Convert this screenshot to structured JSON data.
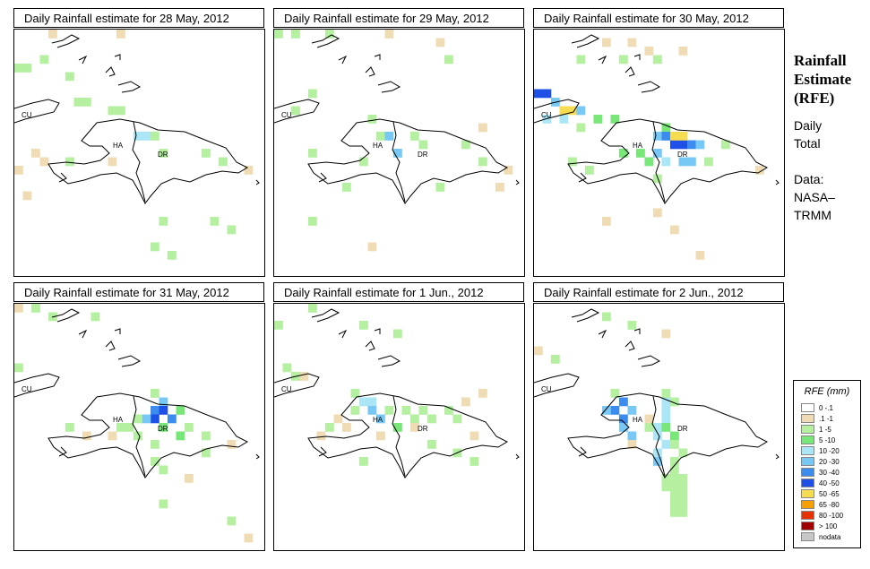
{
  "side": {
    "title_line1": "Rainfall",
    "title_line2": "Estimate",
    "title_line3": "(RFE)",
    "text1": "Daily",
    "text2": "Total",
    "text3": "Data:",
    "text4": "NASA–",
    "text5": "TRMM"
  },
  "legend": {
    "title": "RFE (mm)",
    "classes": [
      {
        "label": "0 -.1",
        "color": "#ffffff"
      },
      {
        "label": ".1 -1",
        "color": "#f0dcb4"
      },
      {
        "label": "1 -5",
        "color": "#b4f0a0"
      },
      {
        "label": "5 -10",
        "color": "#78e678"
      },
      {
        "label": "10 -20",
        "color": "#aae6f5"
      },
      {
        "label": "20 -30",
        "color": "#78c8f5"
      },
      {
        "label": "30 -40",
        "color": "#3c8cf0"
      },
      {
        "label": "40 -50",
        "color": "#1e50e6"
      },
      {
        "label": "50 -65",
        "color": "#f5dc50"
      },
      {
        "label": "65 -80",
        "color": "#f5a000"
      },
      {
        "label": "80 -100",
        "color": "#e63200"
      },
      {
        "label": "> 100",
        "color": "#a00000"
      },
      {
        "label": "nodata",
        "color": "#c8c8c8"
      }
    ]
  },
  "labels": {
    "cu": "CU",
    "ha": "HA",
    "dr": "DR"
  },
  "panels": [
    {
      "title": "Daily Rainfall estimate for  28 May, 2012"
    },
    {
      "title": "Daily Rainfall estimate for  29 May, 2012"
    },
    {
      "title": "Daily Rainfall estimate for  30 May, 2012"
    },
    {
      "title": "Daily Rainfall estimate for  31 May, 2012"
    },
    {
      "title": "Daily Rainfall estimate for  1 Jun., 2012"
    },
    {
      "title": "Daily Rainfall estimate for  2 Jun., 2012"
    }
  ]
}
